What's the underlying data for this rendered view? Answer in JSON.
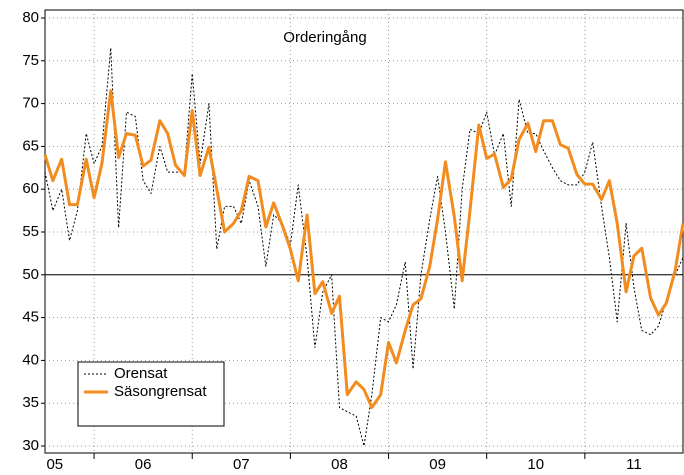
{
  "chart_data": {
    "type": "line",
    "title": "Orderingång",
    "x": [
      2005.5,
      2005.58,
      2005.67,
      2005.75,
      2005.83,
      2005.92,
      2006.0,
      2006.08,
      2006.17,
      2006.25,
      2006.33,
      2006.42,
      2006.5,
      2006.58,
      2006.67,
      2006.75,
      2006.83,
      2006.92,
      2007.0,
      2007.08,
      2007.17,
      2007.25,
      2007.33,
      2007.42,
      2007.5,
      2007.58,
      2007.67,
      2007.75,
      2007.83,
      2007.92,
      2008.0,
      2008.08,
      2008.17,
      2008.25,
      2008.33,
      2008.42,
      2008.5,
      2008.58,
      2008.67,
      2008.75,
      2008.83,
      2008.92,
      2009.0,
      2009.08,
      2009.17,
      2009.25,
      2009.33,
      2009.42,
      2009.5,
      2009.58,
      2009.67,
      2009.75,
      2009.83,
      2009.92,
      2010.0,
      2010.08,
      2010.17,
      2010.25,
      2010.33,
      2010.42,
      2010.5,
      2010.58,
      2010.67,
      2010.75,
      2010.83,
      2010.92,
      2011.0,
      2011.08,
      2011.17,
      2011.25,
      2011.33,
      2011.42,
      2011.5,
      2011.58,
      2011.67,
      2011.75,
      2011.83,
      2011.92,
      2012.0
    ],
    "series": [
      {
        "name": "Orensat",
        "color": "#000000",
        "style": "dotted",
        "values": [
          62,
          57.5,
          60,
          54,
          57.5,
          66.5,
          63,
          65,
          76.5,
          55.5,
          69,
          68.5,
          61,
          59.5,
          65,
          62,
          62,
          62,
          73.5,
          63,
          70,
          53,
          58,
          58,
          56,
          61,
          58,
          51,
          57,
          56,
          53.5,
          60.5,
          52,
          41.5,
          48,
          50,
          34.5,
          34,
          33.5,
          30,
          36,
          45,
          44.5,
          46.5,
          51.5,
          39,
          50,
          56.5,
          61.5,
          55,
          46,
          60,
          67,
          66.5,
          69,
          64,
          66.5,
          58,
          70.5,
          66.5,
          66.5,
          64.5,
          62.5,
          61,
          60.5,
          60.5,
          62,
          65.5,
          58,
          52,
          44.5,
          56,
          48.5,
          43.5,
          43,
          44,
          47,
          50,
          52
        ]
      },
      {
        "name": "Säsongrensat",
        "color": "#f28c1e",
        "style": "solid",
        "values": [
          64,
          61,
          63.5,
          58.2,
          58.2,
          63.5,
          59,
          63,
          71.5,
          63.7,
          66.5,
          66.3,
          62.7,
          63.4,
          68,
          66.5,
          62.8,
          61.6,
          69.2,
          61.6,
          64.9,
          60,
          55,
          56,
          57.5,
          61.5,
          61,
          55.6,
          58.4,
          55.7,
          53,
          49.3,
          57,
          47.8,
          49.2,
          45.5,
          47.5,
          36,
          37.5,
          36.6,
          34.5,
          36,
          42.1,
          39.7,
          43.5,
          46.5,
          47.2,
          51,
          56.5,
          63.2,
          56.8,
          49.3,
          57.5,
          67.5,
          63.6,
          64.1,
          60.2,
          61.2,
          65.8,
          67.7,
          64.4,
          68,
          68,
          65.2,
          64.8,
          61.7,
          60.6,
          60.6,
          58.8,
          61,
          56,
          48,
          52.2,
          53.1,
          47.3,
          45.3,
          46.7,
          50.5,
          56
        ]
      }
    ],
    "xlim": [
      2005.5,
      2012.0
    ],
    "xticks": [
      {
        "value": 2005.6,
        "label": "05"
      },
      {
        "value": 2006.5,
        "label": "06"
      },
      {
        "value": 2007.5,
        "label": "07"
      },
      {
        "value": 2008.5,
        "label": "08"
      },
      {
        "value": 2009.5,
        "label": "09"
      },
      {
        "value": 2010.5,
        "label": "10"
      },
      {
        "value": 2011.5,
        "label": "11"
      }
    ],
    "xgrid": [
      2006,
      2007,
      2008,
      2009,
      2010,
      2011
    ],
    "ylim": [
      30,
      80
    ],
    "yticks": [
      30,
      35,
      40,
      45,
      50,
      55,
      60,
      65,
      70,
      75,
      80
    ],
    "reference_line": 50,
    "grid": true,
    "legend": "lower left"
  }
}
